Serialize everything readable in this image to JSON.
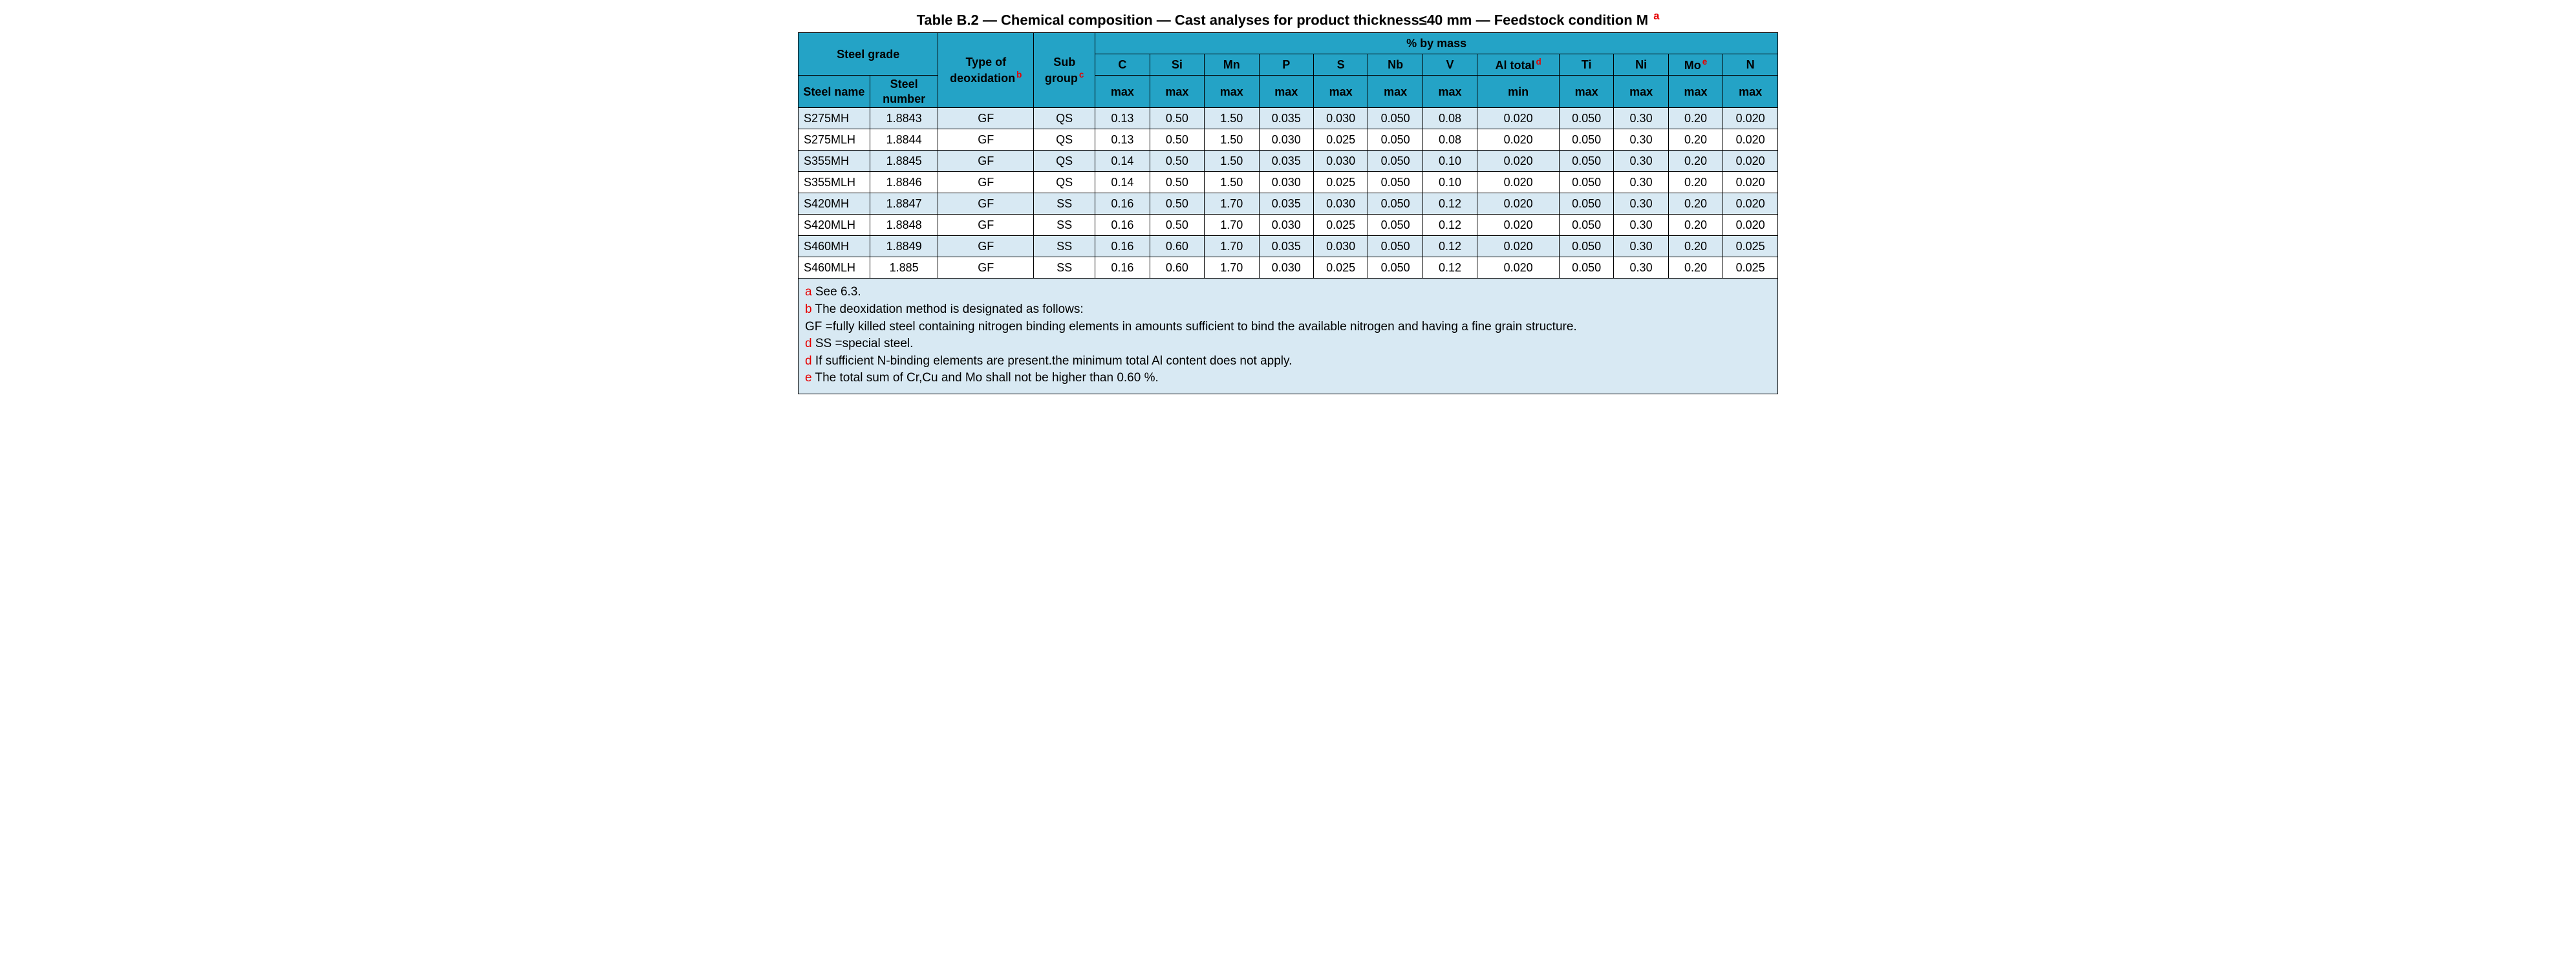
{
  "title_prefix": "Table B.2 — Chemical composition — Cast analyses for product thickness≤40 mm — Feedstock condition M",
  "title_sup": "a",
  "headers": {
    "steel_grade": "Steel grade",
    "type_deox": "Type of deoxidation",
    "type_deox_sup": "b",
    "sub_group": "Sub group",
    "sub_group_sup": "c",
    "pct_by_mass": "% by mass",
    "steel_name": "Steel name",
    "steel_number": "Steel number",
    "C": "C",
    "Si": "Si",
    "Mn": "Mn",
    "P": "P",
    "S": "S",
    "Nb": "Nb",
    "V": "V",
    "Al": "Al total",
    "Al_sup": "d",
    "Ti": "Ti",
    "Ni": "Ni",
    "Mo": "Mo",
    "Mo_sup": "e",
    "N": "N",
    "max": "max",
    "min": "min"
  },
  "rows": [
    {
      "name": "S275MH",
      "num": "1.8843",
      "deox": "GF",
      "sub": "QS",
      "C": "0.13",
      "Si": "0.50",
      "Mn": "1.50",
      "P": "0.035",
      "S": "0.030",
      "Nb": "0.050",
      "V": "0.08",
      "Al": "0.020",
      "Ti": "0.050",
      "Ni": "0.30",
      "Mo": "0.20",
      "N": "0.020"
    },
    {
      "name": "S275MLH",
      "num": "1.8844",
      "deox": "GF",
      "sub": "QS",
      "C": "0.13",
      "Si": "0.50",
      "Mn": "1.50",
      "P": "0.030",
      "S": "0.025",
      "Nb": "0.050",
      "V": "0.08",
      "Al": "0.020",
      "Ti": "0.050",
      "Ni": "0.30",
      "Mo": "0.20",
      "N": "0.020"
    },
    {
      "name": "S355MH",
      "num": "1.8845",
      "deox": "GF",
      "sub": "QS",
      "C": "0.14",
      "Si": "0.50",
      "Mn": "1.50",
      "P": "0.035",
      "S": "0.030",
      "Nb": "0.050",
      "V": "0.10",
      "Al": "0.020",
      "Ti": "0.050",
      "Ni": "0.30",
      "Mo": "0.20",
      "N": "0.020"
    },
    {
      "name": "S355MLH",
      "num": "1.8846",
      "deox": "GF",
      "sub": "QS",
      "C": "0.14",
      "Si": "0.50",
      "Mn": "1.50",
      "P": "0.030",
      "S": "0.025",
      "Nb": "0.050",
      "V": "0.10",
      "Al": "0.020",
      "Ti": "0.050",
      "Ni": "0.30",
      "Mo": "0.20",
      "N": "0.020"
    },
    {
      "name": "S420MH",
      "num": "1.8847",
      "deox": "GF",
      "sub": "SS",
      "C": "0.16",
      "Si": "0.50",
      "Mn": "1.70",
      "P": "0.035",
      "S": "0.030",
      "Nb": "0.050",
      "V": "0.12",
      "Al": "0.020",
      "Ti": "0.050",
      "Ni": "0.30",
      "Mo": "0.20",
      "N": "0.020"
    },
    {
      "name": "S420MLH",
      "num": "1.8848",
      "deox": "GF",
      "sub": "SS",
      "C": "0.16",
      "Si": "0.50",
      "Mn": "1.70",
      "P": "0.030",
      "S": "0.025",
      "Nb": "0.050",
      "V": "0.12",
      "Al": "0.020",
      "Ti": "0.050",
      "Ni": "0.30",
      "Mo": "0.20",
      "N": "0.020"
    },
    {
      "name": "S460MH",
      "num": "1.8849",
      "deox": "GF",
      "sub": "SS",
      "C": "0.16",
      "Si": "0.60",
      "Mn": "1.70",
      "P": "0.035",
      "S": "0.030",
      "Nb": "0.050",
      "V": "0.12",
      "Al": "0.020",
      "Ti": "0.050",
      "Ni": "0.30",
      "Mo": "0.20",
      "N": "0.025"
    },
    {
      "name": "S460MLH",
      "num": "1.885",
      "deox": "GF",
      "sub": "SS",
      "C": "0.16",
      "Si": "0.60",
      "Mn": "1.70",
      "P": "0.030",
      "S": "0.025",
      "Nb": "0.050",
      "V": "0.12",
      "Al": "0.020",
      "Ti": "0.050",
      "Ni": "0.30",
      "Mo": "0.20",
      "N": "0.025"
    }
  ],
  "footnotes": {
    "a_key": "a",
    "a_text": " See 6.3.",
    "b_key": "b",
    "b_text": " The deoxidation method is designated as follows:",
    "gf_text": "GF =fully killed steel containing nitrogen binding elements in amounts sufficient to bind the available nitrogen and having a fine grain structure.",
    "d1_key": "d",
    "d1_text": " SS =special steel.",
    "d2_key": "d",
    "d2_text": " If sufficient N-binding elements are present.the minimum total Al content does not apply.",
    "e_key": "e",
    "e_text": " The total sum of Cr,Cu and Mo shall not be higher than 0.60 %."
  },
  "style": {
    "header_bg": "#24a3c6",
    "shade_bg": "#d8e9f3",
    "border_color": "#000000",
    "footnote_key_color": "#e60000"
  }
}
